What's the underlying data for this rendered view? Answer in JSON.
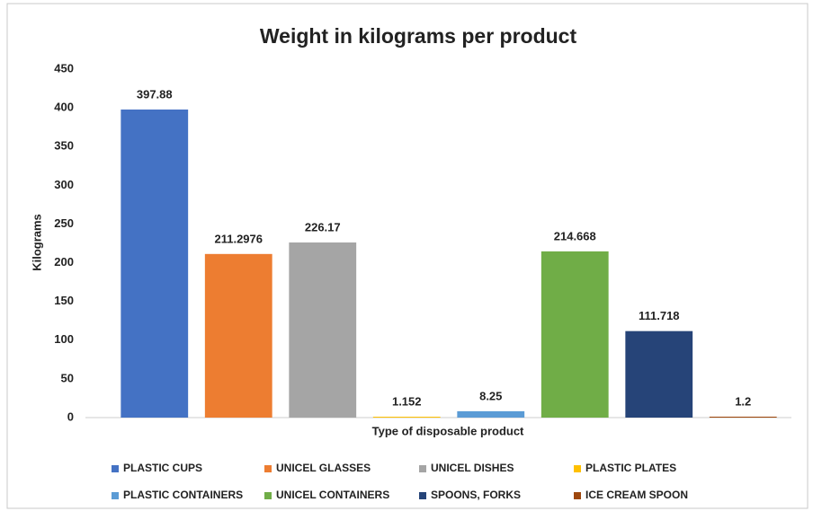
{
  "chart_data": {
    "type": "bar",
    "title": "Weight in kilograms per product",
    "x_label": "Type of disposable product",
    "y_label": "Kilograms",
    "categories": [
      "PLASTIC CUPS",
      "UNICEL GLASSES",
      "UNICEL DISHES",
      "PLASTIC PLATES",
      "PLASTIC CONTAINERS",
      "UNICEL CONTAINERS",
      "SPOONS, FORKS",
      "ICE CREAM SPOON"
    ],
    "values": [
      397.88,
      211.2976,
      226.17,
      1.152,
      8.25,
      214.668,
      111.718,
      1.2
    ],
    "colors": [
      "#4472c4",
      "#ed7d31",
      "#a5a5a5",
      "#ffc000",
      "#5b9bd5",
      "#70ad47",
      "#264478",
      "#9e480e"
    ],
    "ylim": [
      0,
      450
    ],
    "yticks": [
      0,
      50,
      100,
      150,
      200,
      250,
      300,
      350,
      400,
      450
    ],
    "grid": false,
    "legend": "bottom"
  }
}
